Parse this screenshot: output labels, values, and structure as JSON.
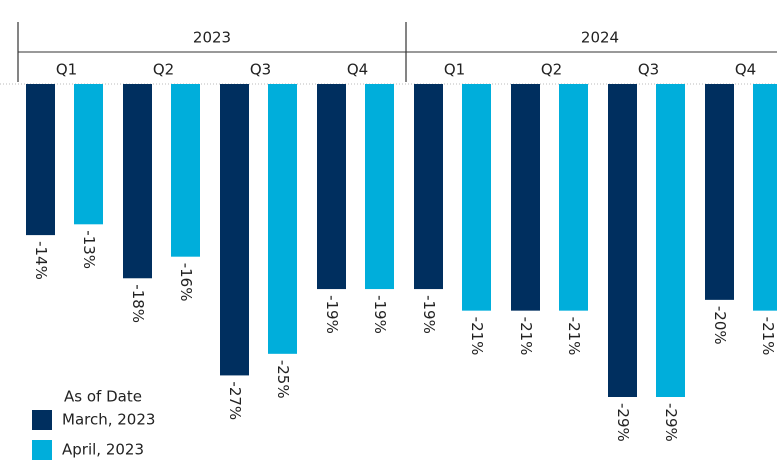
{
  "chart_data": {
    "type": "bar",
    "groups": [
      {
        "name": "2023",
        "categories": [
          "Q1",
          "Q2",
          "Q3",
          "Q4"
        ]
      },
      {
        "name": "2024",
        "categories": [
          "Q1",
          "Q2",
          "Q3",
          "Q4"
        ]
      }
    ],
    "legend_title": "As of Date",
    "legend": "bottom-left",
    "series": [
      {
        "name": "March, 2023",
        "color": "#002f5f",
        "values": [
          -14,
          -18,
          -27,
          -19,
          -19,
          -21,
          -29,
          -20
        ],
        "value_labels": [
          "-14%",
          "-18%",
          "-27%",
          "-19%",
          "-19%",
          "-21%",
          "-29%",
          "-20%"
        ]
      },
      {
        "name": "April, 2023",
        "color": "#00aedb",
        "values": [
          -13,
          -16,
          -25,
          -19,
          -21,
          -21,
          -29,
          -21
        ],
        "value_labels": [
          "-13%",
          "-16%",
          "-25%",
          "-19%",
          "-21%",
          "-21%",
          "-29%",
          "-21%"
        ]
      }
    ]
  }
}
